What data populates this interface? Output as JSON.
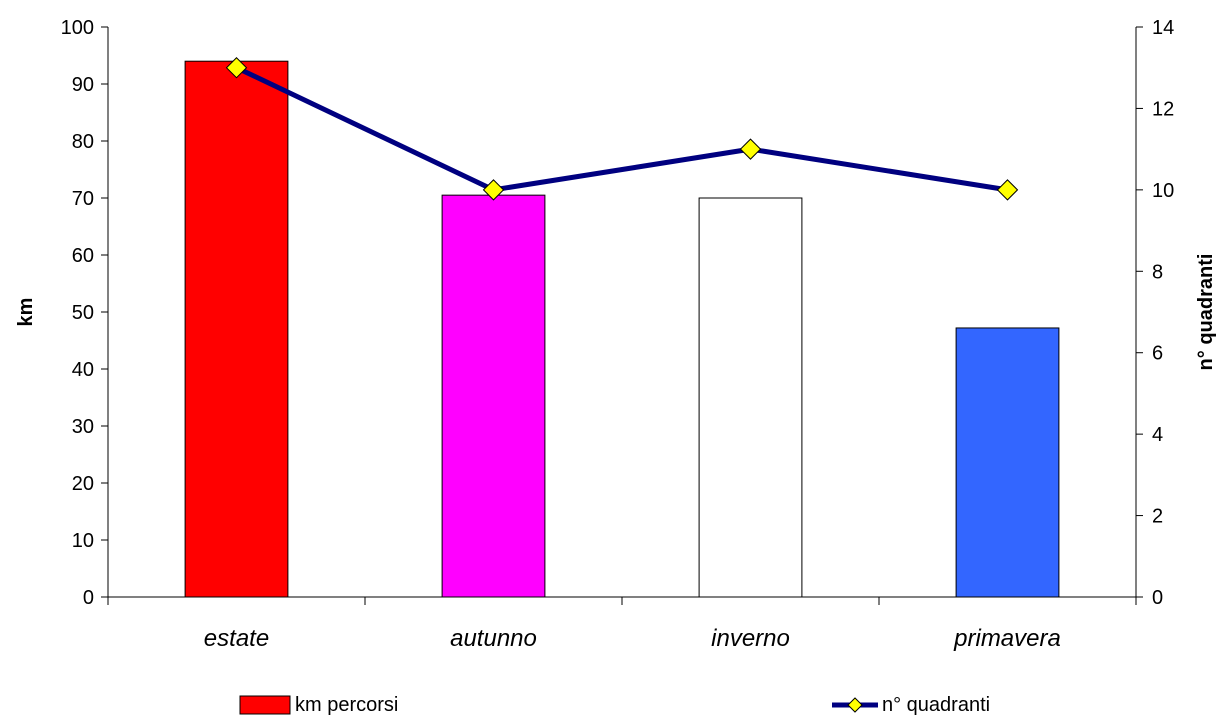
{
  "chart_data": {
    "type": "bar",
    "categories": [
      "estate",
      "autunno",
      "inverno",
      "primavera"
    ],
    "y_left": {
      "label": "km",
      "ylim": [
        0,
        100
      ],
      "ticks": [
        "0",
        "10",
        "20",
        "30",
        "40",
        "50",
        "60",
        "70",
        "80",
        "90",
        "100"
      ]
    },
    "y_right": {
      "label": "n° quadranti",
      "ylim": [
        0,
        14
      ],
      "ticks": [
        "0",
        "2",
        "4",
        "6",
        "8",
        "10",
        "12",
        "14"
      ]
    },
    "series": [
      {
        "name": "km percorsi",
        "type": "bar",
        "axis": "left",
        "values": [
          94,
          70.5,
          70,
          47.2
        ],
        "colors": [
          "#ff0000",
          "#ff00ff",
          "#ffffff",
          "#3366ff"
        ]
      },
      {
        "name": "n° quadranti",
        "type": "line",
        "axis": "right",
        "values": [
          13,
          10,
          11,
          10
        ],
        "line_color": "#000080",
        "marker_color": "#ffff00"
      }
    ],
    "grid": false,
    "legend": "bottom"
  }
}
